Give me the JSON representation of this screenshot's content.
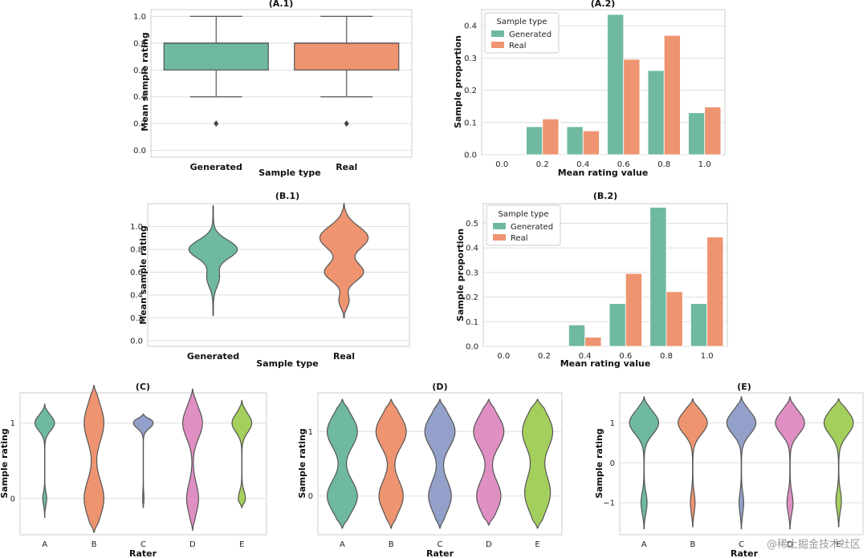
{
  "chart_data": [
    {
      "id": "A1",
      "type": "box",
      "title": "(A.1)",
      "xlabel": "Sample type",
      "ylabel": "Mean sample rating",
      "categories": [
        "Generated",
        "Real"
      ],
      "ylim": [
        -0.05,
        1.05
      ],
      "yticks": [
        "0.0",
        "0.2",
        "0.4",
        "0.6",
        "0.8",
        "1.0"
      ],
      "boxes": [
        {
          "name": "Generated",
          "q1": 0.6,
          "median": 0.8,
          "q3": 0.8,
          "whisker_low": 0.4,
          "whisker_high": 1.0,
          "outliers": [
            0.2
          ]
        },
        {
          "name": "Real",
          "q1": 0.6,
          "median": 0.8,
          "q3": 0.8,
          "whisker_low": 0.4,
          "whisker_high": 1.0,
          "outliers": [
            0.2
          ]
        }
      ]
    },
    {
      "id": "A2",
      "type": "bar",
      "title": "(A.2)",
      "xlabel": "Mean rating value",
      "ylabel": "Sample proportion",
      "categories": [
        "0.0",
        "0.2",
        "0.4",
        "0.6",
        "0.8",
        "1.0"
      ],
      "ylim": [
        0,
        0.45
      ],
      "yticks": [
        "0.0",
        "0.1",
        "0.2",
        "0.3",
        "0.4"
      ],
      "legend_title": "Sample type",
      "series": [
        {
          "name": "Generated",
          "values": [
            0,
            0.087,
            0.087,
            0.435,
            0.261,
            0.13
          ]
        },
        {
          "name": "Real",
          "values": [
            0,
            0.111,
            0.074,
            0.296,
            0.37,
            0.148
          ]
        }
      ]
    },
    {
      "id": "B1",
      "type": "violin",
      "title": "(B.1)",
      "xlabel": "Sample type",
      "ylabel": "Mean sample rating",
      "categories": [
        "Generated",
        "Real"
      ],
      "ylim": [
        -0.05,
        1.2
      ],
      "yticks": [
        "0.0",
        "0.2",
        "0.4",
        "0.6",
        "0.8",
        "1.0"
      ],
      "violins": [
        {
          "name": "Generated",
          "range": [
            0.22,
            1.18
          ],
          "centers": [
            0.8,
            0.55
          ],
          "widths": [
            0.08,
            0.08
          ],
          "weights": [
            1,
            0.25
          ]
        },
        {
          "name": "Real",
          "range": [
            0.2,
            1.2
          ],
          "centers": [
            0.9,
            0.6,
            0.35
          ],
          "widths": [
            0.1,
            0.08,
            0.06
          ],
          "weights": [
            1,
            0.8,
            0.2
          ]
        }
      ]
    },
    {
      "id": "B2",
      "type": "bar",
      "title": "(B.2)",
      "xlabel": "Mean rating value",
      "ylabel": "Sample proportion",
      "categories": [
        "0.0",
        "0.2",
        "0.4",
        "0.6",
        "0.8",
        "1.0"
      ],
      "ylim": [
        0,
        0.58
      ],
      "yticks": [
        "0.0",
        "0.1",
        "0.2",
        "0.3",
        "0.4",
        "0.5"
      ],
      "legend_title": "Sample type",
      "series": [
        {
          "name": "Generated",
          "values": [
            0,
            0,
            0.087,
            0.174,
            0.565,
            0.174
          ]
        },
        {
          "name": "Real",
          "values": [
            0,
            0,
            0.037,
            0.296,
            0.222,
            0.444
          ]
        }
      ]
    },
    {
      "id": "C",
      "type": "violin",
      "title": "(C)",
      "xlabel": "Rater",
      "ylabel": "Sample rating",
      "categories": [
        "A",
        "B",
        "C",
        "D",
        "E"
      ],
      "ylim": [
        -0.48,
        1.4
      ],
      "yticks": [
        "0",
        "1"
      ],
      "violins": [
        {
          "name": "A",
          "range": [
            -0.25,
            1.25
          ],
          "centers": [
            1.0,
            0.0
          ],
          "widths": [
            0.1,
            0.08
          ],
          "weights": [
            1,
            0.2
          ]
        },
        {
          "name": "B",
          "range": [
            -0.45,
            1.5
          ],
          "centers": [
            1.0,
            0.0
          ],
          "widths": [
            0.25,
            0.25
          ],
          "weights": [
            1,
            1
          ]
        },
        {
          "name": "C",
          "range": [
            -0.12,
            1.12
          ],
          "centers": [
            1.0,
            0.0
          ],
          "widths": [
            0.07,
            0.08
          ],
          "weights": [
            1,
            0.06
          ]
        },
        {
          "name": "D",
          "range": [
            -0.42,
            1.45
          ],
          "centers": [
            1.0,
            0.0
          ],
          "widths": [
            0.2,
            0.2
          ],
          "weights": [
            1,
            0.6
          ]
        },
        {
          "name": "E",
          "range": [
            -0.12,
            1.3
          ],
          "centers": [
            1.0,
            0.0
          ],
          "widths": [
            0.12,
            0.1
          ],
          "weights": [
            1,
            0.35
          ]
        }
      ]
    },
    {
      "id": "D",
      "type": "violin",
      "title": "(D)",
      "xlabel": "Rater",
      "ylabel": "Sample rating",
      "categories": [
        "A",
        "B",
        "C",
        "D",
        "E"
      ],
      "ylim": [
        -0.6,
        1.6
      ],
      "yticks": [
        "0",
        "1"
      ],
      "violins": [
        {
          "name": "A",
          "range": [
            -0.5,
            1.5
          ],
          "centers": [
            1.0,
            0.0
          ],
          "widths": [
            0.25,
            0.25
          ],
          "weights": [
            1,
            1
          ]
        },
        {
          "name": "B",
          "range": [
            -0.5,
            1.5
          ],
          "centers": [
            1.0,
            0.0
          ],
          "widths": [
            0.25,
            0.25
          ],
          "weights": [
            1,
            0.8
          ]
        },
        {
          "name": "C",
          "range": [
            -0.5,
            1.5
          ],
          "centers": [
            1.0,
            0.0
          ],
          "widths": [
            0.25,
            0.25
          ],
          "weights": [
            1,
            0.75
          ]
        },
        {
          "name": "D",
          "range": [
            -0.45,
            1.5
          ],
          "centers": [
            1.0,
            0.0
          ],
          "widths": [
            0.25,
            0.25
          ],
          "weights": [
            1,
            0.8
          ]
        },
        {
          "name": "E",
          "range": [
            -0.5,
            1.5
          ],
          "centers": [
            1.0,
            0.05
          ],
          "widths": [
            0.28,
            0.3
          ],
          "weights": [
            1,
            0.85
          ]
        }
      ]
    },
    {
      "id": "E",
      "type": "violin",
      "title": "(E)",
      "xlabel": "Rater",
      "ylabel": "Sample rating",
      "categories": [
        "A",
        "B",
        "C",
        "D",
        "E"
      ],
      "ylim": [
        -1.8,
        1.75
      ],
      "yticks": [
        "−1",
        "0",
        "1"
      ],
      "violins": [
        {
          "name": "A",
          "range": [
            -1.65,
            1.65
          ],
          "centers": [
            1.0,
            -1.0
          ],
          "widths": [
            0.28,
            0.25
          ],
          "weights": [
            1,
            0.2
          ]
        },
        {
          "name": "B",
          "range": [
            -1.6,
            1.6
          ],
          "centers": [
            1.0,
            -1.0
          ],
          "widths": [
            0.28,
            0.25
          ],
          "weights": [
            1,
            0.15
          ]
        },
        {
          "name": "C",
          "range": [
            -1.65,
            1.65
          ],
          "centers": [
            1.0,
            -1.0
          ],
          "widths": [
            0.28,
            0.25
          ],
          "weights": [
            1,
            0.15
          ]
        },
        {
          "name": "D",
          "range": [
            -1.65,
            1.65
          ],
          "centers": [
            1.0,
            -1.0
          ],
          "widths": [
            0.28,
            0.25
          ],
          "weights": [
            1,
            0.2
          ]
        },
        {
          "name": "E",
          "range": [
            -1.6,
            1.6
          ],
          "centers": [
            1.0,
            -0.95
          ],
          "widths": [
            0.3,
            0.25
          ],
          "weights": [
            1,
            0.18
          ]
        }
      ]
    }
  ],
  "palette": {
    "Generated": "#6fb9a0",
    "Real": "#ee9471",
    "raters": [
      "#6fb9a0",
      "#ee9471",
      "#93a0c9",
      "#e08fc3",
      "#a5cf5c"
    ],
    "outline": "#555555"
  },
  "watermark": "@稀土掘金技术社区"
}
